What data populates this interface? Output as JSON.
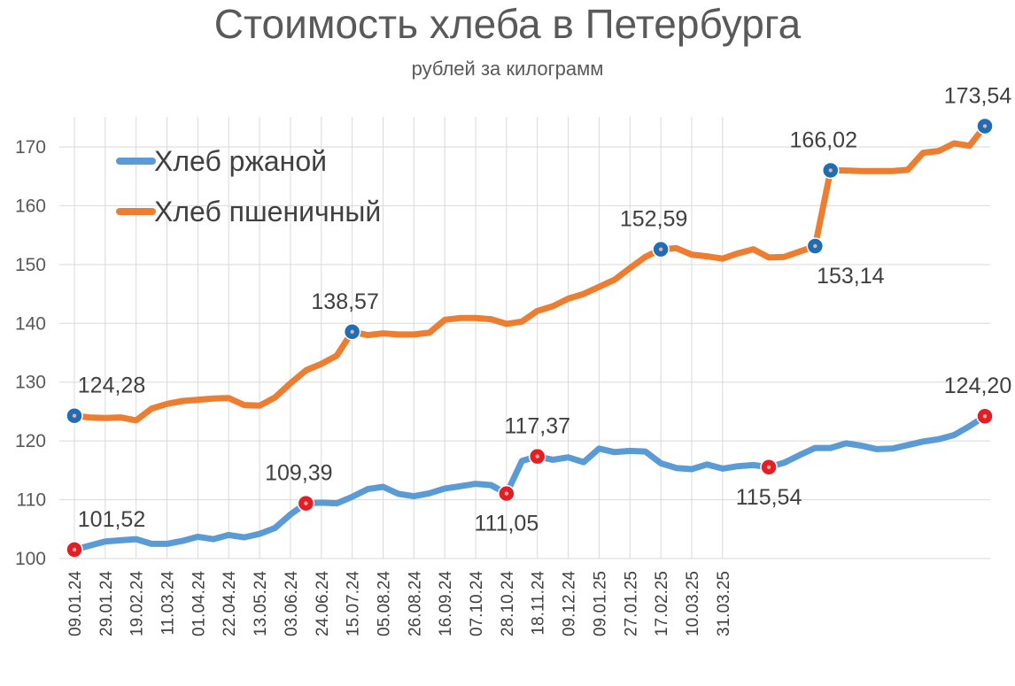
{
  "chart_data": {
    "type": "line",
    "title": "Стоимость хлеба в Петербурга",
    "subtitle": "рублей за килограмм",
    "xlabel": "",
    "ylabel": "",
    "ylim": [
      100,
      175
    ],
    "yticks": [
      100,
      110,
      120,
      130,
      140,
      150,
      160,
      170
    ],
    "grid": "vertical and horizontal",
    "legend": "top-left",
    "x_tick_labels": [
      "09.01.24",
      "29.01.24",
      "19.02.24",
      "11.03.24",
      "01.04.24",
      "22.04.24",
      "13.05.24",
      "03.06.24",
      "24.06.24",
      "15.07.24",
      "05.08.24",
      "26.08.24",
      "16.09.24",
      "07.10.24",
      "28.10.24",
      "18.11.24",
      "09.12.24",
      "09.01.25",
      "27.01.25",
      "17.02.25",
      "10.03.25",
      "31.03.25"
    ],
    "x_tick_positions": [
      0,
      2,
      4,
      6,
      8,
      10,
      12,
      14,
      16,
      18,
      20,
      22,
      24,
      26,
      28,
      30,
      32,
      34,
      36,
      38,
      40,
      42
    ],
    "series": [
      {
        "name": "Хлеб ржаной",
        "color": "#5B9BD5",
        "values": [
          101.52,
          102.2,
          102.9,
          103.1,
          103.3,
          102.5,
          102.5,
          103.0,
          103.7,
          103.3,
          104.0,
          103.6,
          104.2,
          105.2,
          107.5,
          109.39,
          109.5,
          109.4,
          110.5,
          111.8,
          112.2,
          111.0,
          110.6,
          111.1,
          111.9,
          112.3,
          112.7,
          112.5,
          111.05,
          116.6,
          117.37,
          116.8,
          117.2,
          116.4,
          118.7,
          118.1,
          118.3,
          118.2,
          116.2,
          115.4,
          115.2,
          116.0,
          115.3,
          115.7,
          115.9,
          115.54,
          116.3,
          117.6,
          118.8,
          118.8,
          119.6,
          119.2,
          118.6,
          118.7,
          119.3,
          119.9,
          120.3,
          121.0,
          122.5,
          124.2
        ],
        "highlights": [
          {
            "index": 0,
            "label": "101,52",
            "pos": "above-right"
          },
          {
            "index": 15,
            "label": "109,39",
            "pos": "above-left"
          },
          {
            "index": 28,
            "label": "111,05",
            "pos": "below"
          },
          {
            "index": 30,
            "label": "117,37",
            "pos": "above"
          },
          {
            "index": 45,
            "label": "115,54",
            "pos": "below"
          },
          {
            "index": 59,
            "label": "124,20",
            "pos": "above-left"
          }
        ],
        "highlight_color": "#E31E24"
      },
      {
        "name": "Хлеб пшеничный",
        "color": "#ED7D31",
        "values": [
          124.28,
          124.0,
          123.9,
          124.0,
          123.5,
          125.5,
          126.3,
          126.8,
          127.0,
          127.2,
          127.3,
          126.1,
          126.0,
          127.4,
          129.8,
          132.0,
          133.1,
          134.5,
          138.57,
          138.0,
          138.3,
          138.1,
          138.1,
          138.4,
          140.6,
          140.9,
          140.9,
          140.7,
          139.9,
          140.3,
          142.1,
          142.9,
          144.2,
          145.0,
          146.2,
          147.4,
          149.4,
          151.3,
          152.59,
          152.8,
          151.7,
          151.4,
          151.0,
          151.9,
          152.6,
          151.2,
          151.3,
          152.2,
          153.14,
          166.02,
          166.0,
          165.9,
          165.9,
          165.9,
          166.1,
          169.0,
          169.3,
          170.6,
          170.2,
          173.54
        ],
        "highlights": [
          {
            "index": 0,
            "label": "124,28",
            "pos": "above-right"
          },
          {
            "index": 18,
            "label": "138,57",
            "pos": "above-left"
          },
          {
            "index": 38,
            "label": "152,59",
            "pos": "above-left"
          },
          {
            "index": 48,
            "label": "153,14",
            "pos": "below-right"
          },
          {
            "index": 49,
            "label": "166,02",
            "pos": "above-left"
          },
          {
            "index": 59,
            "label": "173,54",
            "pos": "above-left"
          }
        ],
        "highlight_color": "#1F6DB5"
      }
    ]
  }
}
